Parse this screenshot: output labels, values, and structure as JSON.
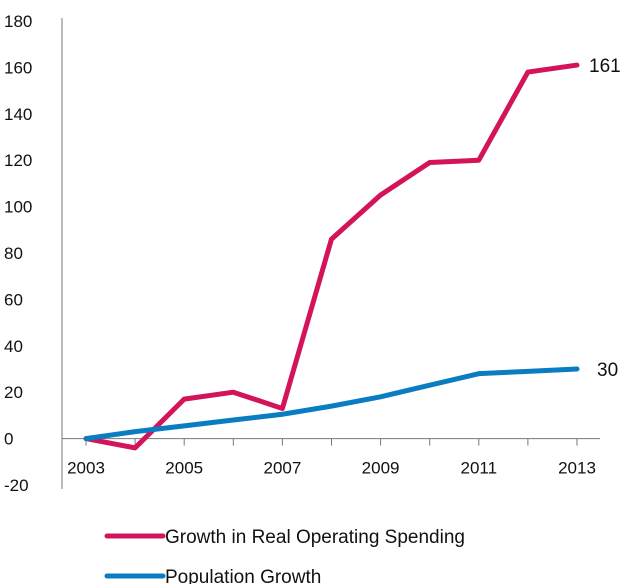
{
  "chart_data": {
    "type": "line",
    "x": [
      2003,
      2004,
      2005,
      2006,
      2007,
      2008,
      2009,
      2010,
      2011,
      2012,
      2013
    ],
    "x_tick_labels": [
      "2003",
      "2005",
      "2007",
      "2009",
      "2011",
      "2013"
    ],
    "y_tick_labels": [
      "-20",
      "0",
      "20",
      "40",
      "60",
      "80",
      "100",
      "120",
      "140",
      "160",
      "180"
    ],
    "ylim": [
      -20,
      180
    ],
    "grid": false,
    "legend_position": "bottom",
    "series": [
      {
        "name": "Growth in Real Operating Spending",
        "color": "#d4145a",
        "values": [
          0,
          -4,
          17,
          20,
          13,
          86,
          105,
          119,
          120,
          158,
          161
        ],
        "end_label": "161"
      },
      {
        "name": "Population Growth",
        "color": "#0a7dc2",
        "values": [
          0,
          3,
          5.5,
          8,
          10.5,
          14,
          18,
          23,
          28,
          29,
          30
        ],
        "end_label": "30"
      }
    ]
  }
}
